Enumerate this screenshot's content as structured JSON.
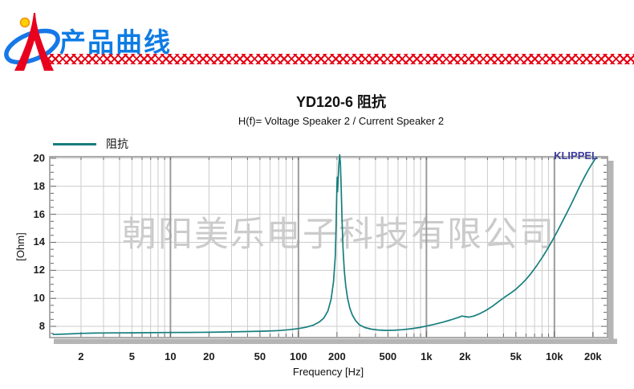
{
  "header": {
    "title": "产品曲线",
    "logo": "company-logo",
    "title_color": "#0e7ce4",
    "ribbon_color": "#e60012"
  },
  "chart": {
    "title": "YD120-6 阻抗",
    "subtitle": "H(f)= Voltage Speaker 2 / Current Speaker 2",
    "legend_label": "阻抗",
    "watermark": "朝阳美乐电子科技有限公司",
    "brand": "KLIPPEL",
    "brand_color": "#3b3b9e"
  },
  "chart_data": {
    "type": "line",
    "title": "YD120-6 阻抗",
    "subtitle": "H(f)= Voltage Speaker 2 / Current Speaker 2",
    "xlabel": "Frequency [Hz]",
    "ylabel": "[Ohm]",
    "x_scale": "log",
    "xlim": [
      1.14,
      26000
    ],
    "ylim": [
      7.2,
      20.11
    ],
    "grid": true,
    "legend_position": "top-left",
    "y_ticks": [
      8,
      10,
      12,
      14,
      16,
      18,
      20
    ],
    "y_minor_step": 0.5,
    "x_labeled_ticks": [
      {
        "v": 2,
        "label": "2"
      },
      {
        "v": 5,
        "label": "5"
      },
      {
        "v": 10,
        "label": "10"
      },
      {
        "v": 20,
        "label": "20"
      },
      {
        "v": 50,
        "label": "50"
      },
      {
        "v": 100,
        "label": "100"
      },
      {
        "v": 200,
        "label": "200"
      },
      {
        "v": 500,
        "label": "500"
      },
      {
        "v": 1000,
        "label": "1k"
      },
      {
        "v": 2000,
        "label": "2k"
      },
      {
        "v": 5000,
        "label": "5k"
      },
      {
        "v": 10000,
        "label": "10k"
      },
      {
        "v": 20000,
        "label": "20k"
      }
    ],
    "x_major_gridlines": [
      10,
      100,
      1000,
      10000
    ],
    "colors": {
      "curve": "#177e7e",
      "grid_minor": "#cccccc",
      "grid_major": "#9b9b9b",
      "frame": "#8f8f8f",
      "frame_shadow": "#b5b5b5",
      "tick": "#666666"
    },
    "series": [
      {
        "name": "阻抗",
        "color": "#177e7e",
        "points": [
          [
            1.2,
            7.42
          ],
          [
            1.6,
            7.46
          ],
          [
            2,
            7.5
          ],
          [
            2.6,
            7.52
          ],
          [
            3.5,
            7.53
          ],
          [
            5,
            7.54
          ],
          [
            7,
            7.55
          ],
          [
            10,
            7.56
          ],
          [
            14,
            7.57
          ],
          [
            20,
            7.58
          ],
          [
            28,
            7.6
          ],
          [
            40,
            7.63
          ],
          [
            55,
            7.66
          ],
          [
            70,
            7.7
          ],
          [
            85,
            7.76
          ],
          [
            100,
            7.84
          ],
          [
            115,
            7.94
          ],
          [
            130,
            8.08
          ],
          [
            145,
            8.3
          ],
          [
            158,
            8.6
          ],
          [
            170,
            9.1
          ],
          [
            180,
            9.95
          ],
          [
            188,
            11.2
          ],
          [
            194,
            13.0
          ],
          [
            197,
            15.2
          ],
          [
            199,
            17.2
          ],
          [
            200,
            18.2
          ],
          [
            201,
            18.65
          ],
          [
            202,
            17.6
          ],
          [
            204,
            18.4
          ],
          [
            207,
            19.6
          ],
          [
            210,
            20.25
          ],
          [
            213,
            19.6
          ],
          [
            216,
            17.8
          ],
          [
            219,
            15.6
          ],
          [
            223,
            13.6
          ],
          [
            228,
            12.0
          ],
          [
            234,
            10.9
          ],
          [
            242,
            10.0
          ],
          [
            252,
            9.3
          ],
          [
            264,
            8.8
          ],
          [
            280,
            8.4
          ],
          [
            300,
            8.1
          ],
          [
            330,
            7.92
          ],
          [
            370,
            7.8
          ],
          [
            420,
            7.74
          ],
          [
            480,
            7.71
          ],
          [
            560,
            7.72
          ],
          [
            650,
            7.76
          ],
          [
            760,
            7.83
          ],
          [
            880,
            7.92
          ],
          [
            1000,
            8.02
          ],
          [
            1150,
            8.14
          ],
          [
            1350,
            8.3
          ],
          [
            1550,
            8.46
          ],
          [
            1750,
            8.62
          ],
          [
            1900,
            8.74
          ],
          [
            2000,
            8.7
          ],
          [
            2150,
            8.66
          ],
          [
            2350,
            8.74
          ],
          [
            2600,
            8.9
          ],
          [
            2900,
            9.12
          ],
          [
            3300,
            9.45
          ],
          [
            3700,
            9.8
          ],
          [
            4100,
            10.1
          ],
          [
            4600,
            10.4
          ],
          [
            5000,
            10.65
          ],
          [
            5500,
            11.0
          ],
          [
            6000,
            11.35
          ],
          [
            6600,
            11.8
          ],
          [
            7300,
            12.35
          ],
          [
            8000,
            12.9
          ],
          [
            8800,
            13.5
          ],
          [
            9600,
            14.1
          ],
          [
            10500,
            14.75
          ],
          [
            11500,
            15.45
          ],
          [
            12500,
            16.1
          ],
          [
            13500,
            16.7
          ],
          [
            14500,
            17.3
          ],
          [
            15500,
            17.85
          ],
          [
            16500,
            18.35
          ],
          [
            17500,
            18.8
          ],
          [
            18500,
            19.2
          ],
          [
            19500,
            19.55
          ],
          [
            20500,
            19.85
          ],
          [
            21500,
            20.1
          ]
        ]
      }
    ]
  }
}
